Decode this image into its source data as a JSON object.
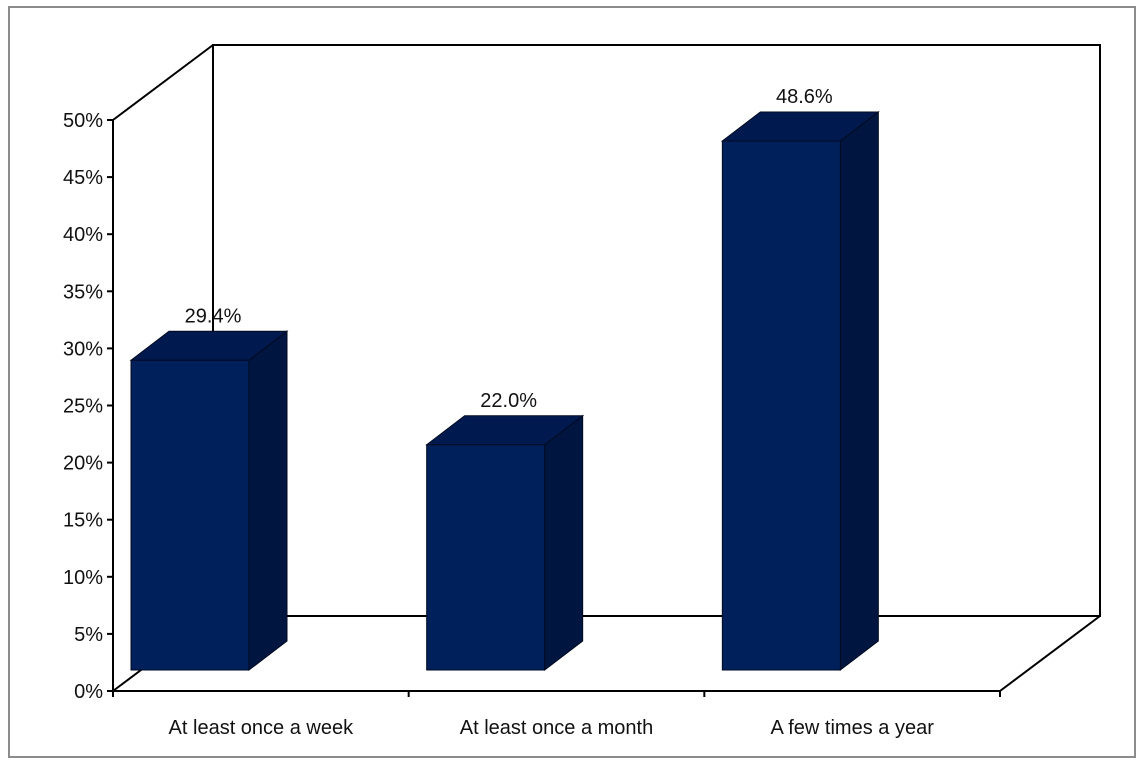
{
  "chart_data": {
    "type": "bar",
    "style": "3d-column",
    "categories": [
      "At least once a week",
      "At least once a month",
      "A few times a year"
    ],
    "values": [
      29.4,
      22.0,
      48.6
    ],
    "data_labels": [
      "29.4%",
      "22.0%",
      "48.6%"
    ],
    "ylim": [
      0,
      50
    ],
    "y_ticks": [
      0,
      5,
      10,
      15,
      20,
      25,
      30,
      35,
      40,
      45,
      50
    ],
    "y_tick_labels": [
      "0%",
      "5%",
      "10%",
      "15%",
      "20%",
      "25%",
      "30%",
      "35%",
      "40%",
      "45%",
      "50%"
    ],
    "grid": false,
    "legend": "none",
    "colors": {
      "bar_front": "#00205c",
      "bar_side": "#001540",
      "bar_top": "#001a50",
      "axis": "#000000"
    }
  }
}
